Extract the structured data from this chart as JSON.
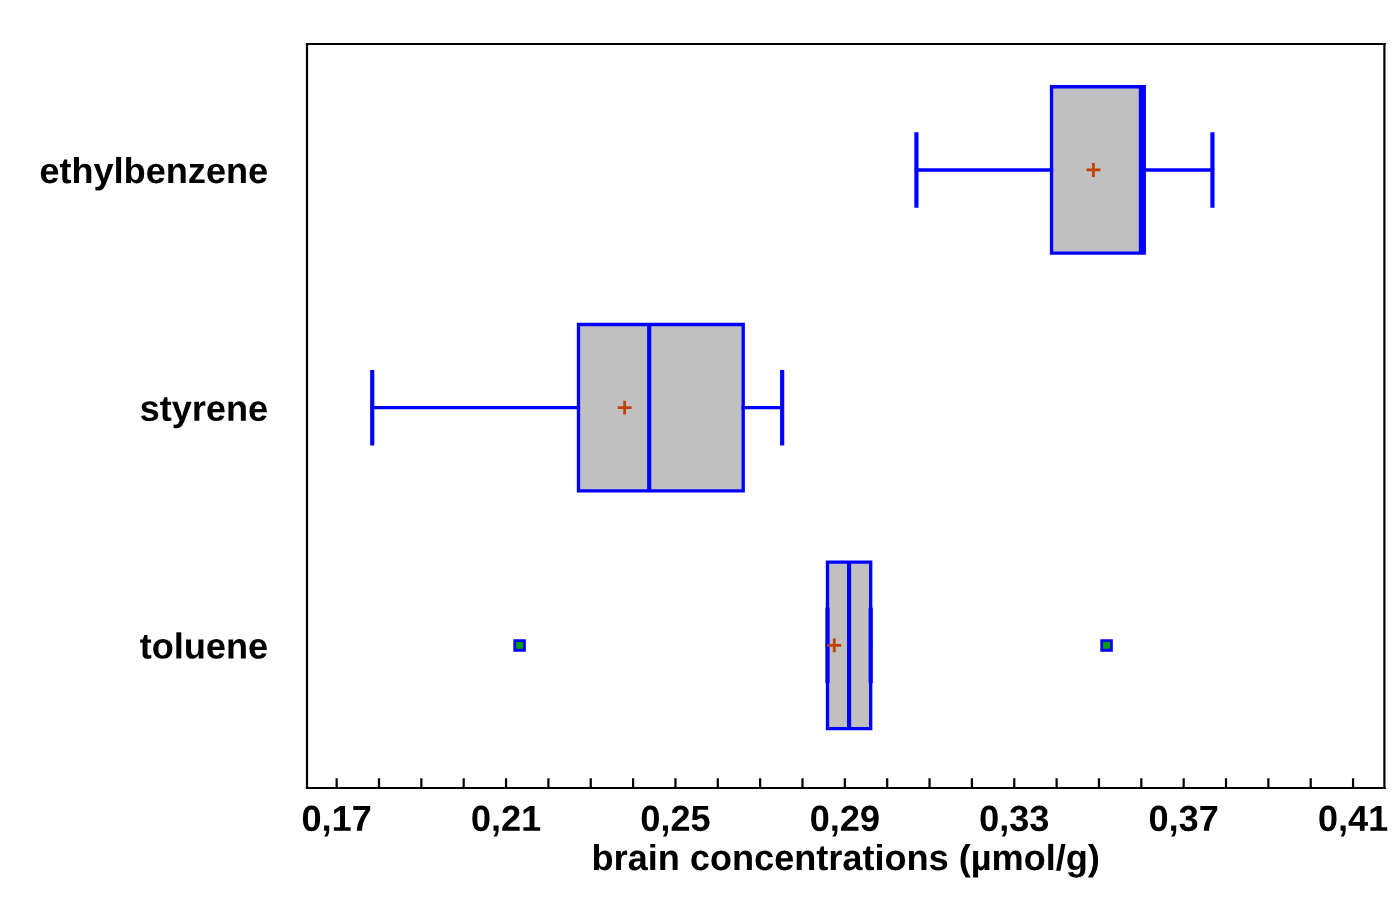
{
  "chart_data": {
    "type": "box",
    "orientation": "horizontal",
    "xlabel": "brain concentrations (µmol/g)",
    "categories": [
      "ethylbenzene",
      "styrene",
      "toluene"
    ],
    "boxes": [
      {
        "low": 0.3069,
        "q1": 0.3388,
        "median": 0.3599,
        "q3": 0.3607,
        "high": 0.3768,
        "mean": 0.3487
      },
      {
        "low": 0.1784,
        "q1": 0.2271,
        "median": 0.2438,
        "q3": 0.266,
        "high": 0.2752,
        "mean": 0.238
      },
      {
        "low": 0.2859,
        "q1": 0.2859,
        "median": 0.291,
        "q3": 0.2961,
        "high": 0.2961,
        "mean": 0.2875,
        "outliers": [
          0.2132,
          0.3518
        ]
      }
    ],
    "color": "#c0c0c0",
    "xlim": [
      0.163,
      0.4174
    ],
    "xticks": [
      {
        "value": 0.17,
        "label": "0,17"
      },
      {
        "value": 0.18,
        "label": null
      },
      {
        "value": 0.19,
        "label": null
      },
      {
        "value": 0.2,
        "label": null
      },
      {
        "value": 0.21,
        "label": "0,21"
      },
      {
        "value": 0.22,
        "label": null
      },
      {
        "value": 0.23,
        "label": null
      },
      {
        "value": 0.24,
        "label": null
      },
      {
        "value": 0.25,
        "label": "0,25"
      },
      {
        "value": 0.26,
        "label": null
      },
      {
        "value": 0.27,
        "label": null
      },
      {
        "value": 0.28,
        "label": null
      },
      {
        "value": 0.29,
        "label": "0,29"
      },
      {
        "value": 0.3,
        "label": null
      },
      {
        "value": 0.31,
        "label": null
      },
      {
        "value": 0.32,
        "label": null
      },
      {
        "value": 0.33,
        "label": "0,33"
      },
      {
        "value": 0.34,
        "label": null
      },
      {
        "value": 0.35,
        "label": null
      },
      {
        "value": 0.36,
        "label": null
      },
      {
        "value": 0.37,
        "label": "0,37"
      },
      {
        "value": 0.38,
        "label": null
      },
      {
        "value": 0.39,
        "label": null
      },
      {
        "value": 0.4,
        "label": null
      },
      {
        "value": 0.41,
        "label": "0,41"
      }
    ],
    "grid": false,
    "legend": false
  }
}
